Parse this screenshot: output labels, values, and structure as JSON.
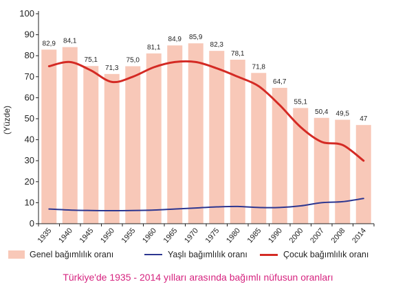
{
  "chart_data": {
    "type": "bar",
    "ylabel": "(Yüzde)",
    "ylim": [
      0,
      100
    ],
    "yticks": [
      0,
      10,
      20,
      30,
      40,
      50,
      60,
      70,
      80,
      90,
      100
    ],
    "categories": [
      "1935",
      "1940",
      "1945",
      "1950",
      "1955",
      "1960",
      "1965",
      "1970",
      "1975",
      "1980",
      "1985",
      "1990",
      "2000",
      "2007",
      "2008",
      "2014"
    ],
    "series": [
      {
        "name": "Genel bağımlılık oranı",
        "kind": "bar",
        "color": "#f8c8b8",
        "values": [
          82.9,
          84.1,
          75.1,
          71.3,
          75.0,
          81.1,
          84.9,
          85.9,
          82.3,
          78.1,
          71.8,
          64.7,
          55.1,
          50.4,
          49.5,
          47
        ],
        "labels": [
          "82,9",
          "84,1",
          "75,1",
          "71,3",
          "75,0",
          "81,1",
          "84,9",
          "85,9",
          "82,3",
          "78,1",
          "71,8",
          "64,7",
          "55,1",
          "50,4",
          "49,5",
          "47"
        ]
      },
      {
        "name": "Yaşlı bağımlılık oranı",
        "kind": "line",
        "color": "#2b3590",
        "values": [
          7,
          6.5,
          6.3,
          6.2,
          6.3,
          6.5,
          7,
          7.5,
          8,
          8.2,
          7.7,
          7.7,
          8.5,
          10,
          10.5,
          12
        ]
      },
      {
        "name": "Çocuk bağımlılık oranı",
        "kind": "line",
        "color": "#d42a24",
        "values": [
          75,
          77,
          73,
          67.5,
          70,
          74.5,
          77,
          77,
          74,
          70,
          65.5,
          56.5,
          46,
          39,
          37.5,
          30
        ]
      }
    ],
    "legend_position": "bottom",
    "grid": false
  },
  "caption": "Türkiye'de 1935 - 2014 yılları arasında bağımlı nüfusun oranları"
}
